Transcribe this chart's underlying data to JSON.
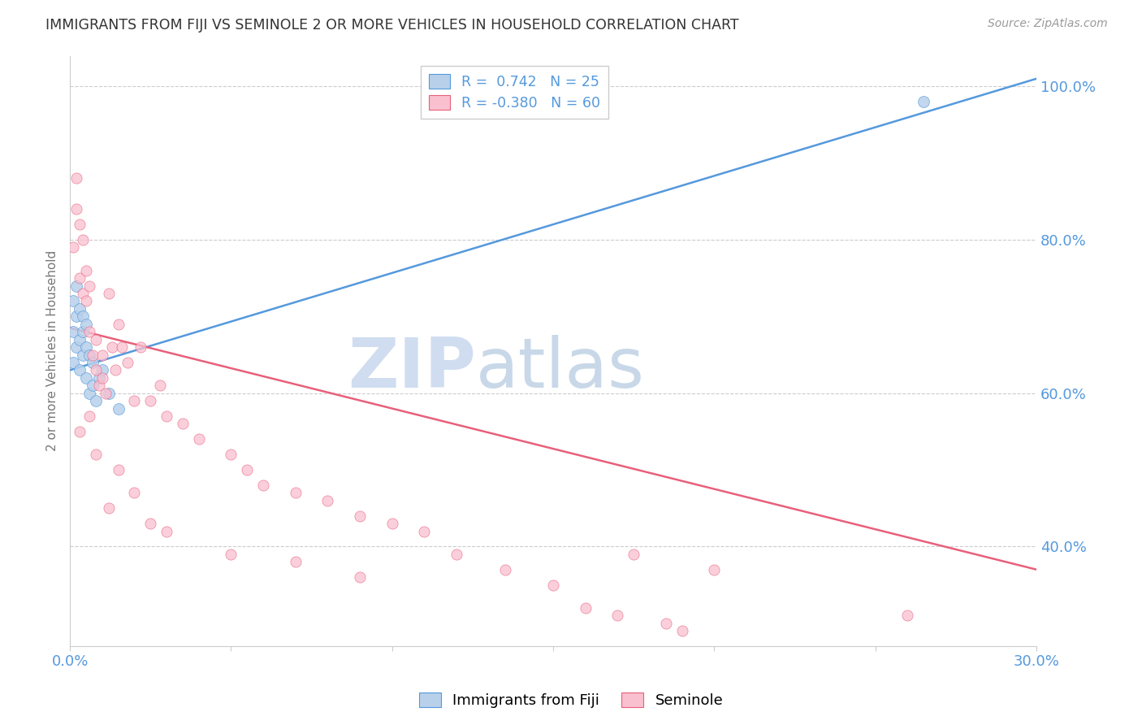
{
  "title": "IMMIGRANTS FROM FIJI VS SEMINOLE 2 OR MORE VEHICLES IN HOUSEHOLD CORRELATION CHART",
  "source": "Source: ZipAtlas.com",
  "ylabel": "2 or more Vehicles in Household",
  "xlim": [
    0.0,
    0.3
  ],
  "ylim": [
    0.27,
    1.04
  ],
  "ytick_right_vals": [
    0.4,
    0.6,
    0.8,
    1.0
  ],
  "ytick_right_labels": [
    "40.0%",
    "60.0%",
    "80.0%",
    "100.0%"
  ],
  "blue_color": "#b8d0ea",
  "blue_line_color": "#5599dd",
  "pink_color": "#f9c0d0",
  "pink_line_color": "#e8607a",
  "watermark_zip": "ZIP",
  "watermark_atlas": "atlas",
  "watermark_color_zip": "#d0ddf0",
  "watermark_color_atlas": "#c8d8e8",
  "grid_color": "#cccccc",
  "title_color": "#333333",
  "axis_label_color": "#777777",
  "right_axis_color": "#5599dd",
  "blue_scatter_x": [
    0.001,
    0.001,
    0.001,
    0.002,
    0.002,
    0.002,
    0.003,
    0.003,
    0.003,
    0.004,
    0.004,
    0.004,
    0.005,
    0.005,
    0.005,
    0.006,
    0.006,
    0.007,
    0.007,
    0.008,
    0.009,
    0.01,
    0.012,
    0.015,
    0.265
  ],
  "blue_scatter_y": [
    0.64,
    0.68,
    0.72,
    0.66,
    0.7,
    0.74,
    0.63,
    0.67,
    0.71,
    0.65,
    0.68,
    0.7,
    0.62,
    0.66,
    0.69,
    0.6,
    0.65,
    0.61,
    0.64,
    0.59,
    0.62,
    0.63,
    0.6,
    0.58,
    0.98
  ],
  "pink_scatter_x": [
    0.001,
    0.002,
    0.003,
    0.003,
    0.004,
    0.004,
    0.005,
    0.005,
    0.006,
    0.006,
    0.007,
    0.008,
    0.008,
    0.009,
    0.01,
    0.01,
    0.011,
    0.012,
    0.013,
    0.014,
    0.015,
    0.016,
    0.018,
    0.02,
    0.022,
    0.025,
    0.028,
    0.03,
    0.035,
    0.04,
    0.05,
    0.055,
    0.06,
    0.07,
    0.08,
    0.09,
    0.1,
    0.11,
    0.12,
    0.135,
    0.15,
    0.16,
    0.17,
    0.175,
    0.185,
    0.19,
    0.2,
    0.003,
    0.006,
    0.008,
    0.012,
    0.015,
    0.02,
    0.025,
    0.03,
    0.05,
    0.07,
    0.09,
    0.26,
    0.002
  ],
  "pink_scatter_y": [
    0.79,
    0.84,
    0.75,
    0.82,
    0.73,
    0.8,
    0.72,
    0.76,
    0.68,
    0.74,
    0.65,
    0.63,
    0.67,
    0.61,
    0.62,
    0.65,
    0.6,
    0.73,
    0.66,
    0.63,
    0.69,
    0.66,
    0.64,
    0.59,
    0.66,
    0.59,
    0.61,
    0.57,
    0.56,
    0.54,
    0.52,
    0.5,
    0.48,
    0.47,
    0.46,
    0.44,
    0.43,
    0.42,
    0.39,
    0.37,
    0.35,
    0.32,
    0.31,
    0.39,
    0.3,
    0.29,
    0.37,
    0.55,
    0.57,
    0.52,
    0.45,
    0.5,
    0.47,
    0.43,
    0.42,
    0.39,
    0.38,
    0.36,
    0.31,
    0.88
  ],
  "blue_trend_x": [
    0.0,
    0.3
  ],
  "blue_trend_y": [
    0.63,
    1.01
  ],
  "pink_trend_x": [
    0.0,
    0.3
  ],
  "pink_trend_y": [
    0.685,
    0.37
  ]
}
